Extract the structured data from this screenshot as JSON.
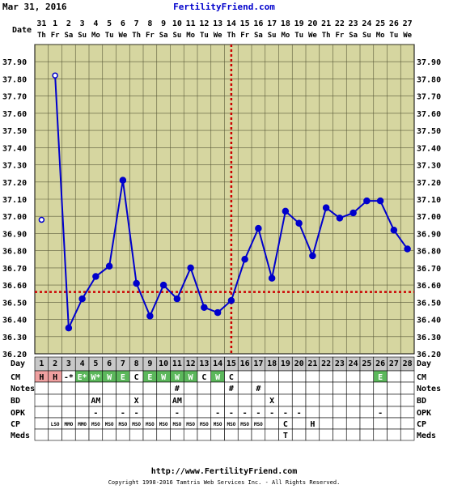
{
  "header": {
    "date": "Mar 31, 2016",
    "site": "FertilityFriend.com",
    "row_labels": {
      "date": "Date",
      "day": "Day",
      "cm": "CM",
      "notes": "Notes",
      "bd": "BD",
      "opk": "OPK",
      "cp": "CP",
      "meds": "Meds"
    }
  },
  "footer": {
    "url": "http://www.FertilityFriend.com",
    "copyright": "Copyright 1998-2016 Tamtris Web Services Inc. - All Rights Reserved."
  },
  "colors": {
    "chart_bg": "#d6d6a0",
    "grid": "#5a5a3a",
    "line": "#0000cc",
    "coverline": "#cc0000",
    "ovulation": "#cc0000",
    "day_row_bg": "#c8c8c8",
    "period_cell": "#f0a0a0",
    "egg_white_cell": "#5cb85c",
    "site_link": "#0000cc"
  },
  "chart_data": {
    "type": "line",
    "dates": [
      "31",
      "1",
      "2",
      "3",
      "4",
      "5",
      "6",
      "7",
      "8",
      "9",
      "10",
      "11",
      "12",
      "13",
      "14",
      "15",
      "16",
      "17",
      "18",
      "19",
      "20",
      "21",
      "22",
      "23",
      "24",
      "25",
      "26",
      "27"
    ],
    "weekdays": [
      "Th",
      "Fr",
      "Sa",
      "Su",
      "Mo",
      "Tu",
      "We",
      "Th",
      "Fr",
      "Sa",
      "Su",
      "Mo",
      "Tu",
      "We",
      "Th",
      "Fr",
      "Sa",
      "Su",
      "Mo",
      "Tu",
      "We",
      "Th",
      "Fr",
      "Sa",
      "Su",
      "Mo",
      "Tu",
      "We"
    ],
    "days": [
      "1",
      "2",
      "3",
      "4",
      "5",
      "6",
      "7",
      "8",
      "9",
      "10",
      "11",
      "12",
      "13",
      "14",
      "15",
      "16",
      "17",
      "18",
      "19",
      "20",
      "21",
      "22",
      "23",
      "24",
      "25",
      "26",
      "27",
      "28"
    ],
    "temperatures": [
      36.98,
      37.82,
      36.35,
      36.52,
      36.65,
      36.71,
      37.21,
      36.61,
      36.42,
      36.6,
      36.52,
      36.7,
      36.47,
      36.44,
      36.51,
      36.75,
      36.93,
      36.64,
      37.03,
      36.96,
      36.77,
      37.05,
      36.99,
      37.02,
      37.09,
      37.09,
      36.92,
      36.81
    ],
    "open_points": [
      1,
      2
    ],
    "ylim": [
      36.2,
      38.0
    ],
    "yticks": [
      "36.20",
      "36.30",
      "36.40",
      "36.50",
      "36.60",
      "36.70",
      "36.80",
      "36.90",
      "37.00",
      "37.10",
      "37.20",
      "37.30",
      "37.40",
      "37.50",
      "37.60",
      "37.70",
      "37.80",
      "37.90"
    ],
    "coverline": 36.56,
    "ovulation_day": 15,
    "grid": true,
    "cm": [
      "H",
      "H",
      "-*",
      "E*",
      "W*",
      "W",
      "E",
      "C",
      "E",
      "W",
      "W",
      "W",
      "C",
      "W",
      "C",
      "",
      "",
      "",
      "",
      "",
      "",
      "",
      "",
      "",
      "",
      "E",
      "",
      ""
    ],
    "notes": [
      "",
      "",
      "",
      "",
      "",
      "",
      "",
      "",
      "",
      "",
      "#",
      "",
      "",
      "",
      "#",
      "",
      "#",
      "",
      "",
      "",
      "",
      "",
      "",
      "",
      "",
      "",
      "",
      ""
    ],
    "bd": [
      "",
      "",
      "",
      "",
      "AM",
      "",
      "",
      "X",
      "",
      "",
      "AM",
      "",
      "",
      "",
      "",
      "",
      "",
      "X",
      "",
      "",
      "",
      "",
      "",
      "",
      "",
      "",
      "",
      ""
    ],
    "opk": [
      "",
      "",
      "",
      "",
      "-",
      "",
      "-",
      "-",
      "",
      "",
      "-",
      "",
      "",
      "-",
      "-",
      "-",
      "-",
      "-",
      "-",
      "-",
      "",
      "",
      "",
      "",
      "",
      "-",
      "",
      ""
    ],
    "cp": [
      "",
      "LSO",
      "MMO",
      "MMO",
      "MSO",
      "MSO",
      "MSO",
      "MSO",
      "MSO",
      "MSO",
      "MSO",
      "MSO",
      "MSO",
      "MSO",
      "MSO",
      "MSO",
      "MSO",
      "",
      "C",
      "",
      "H",
      "",
      "",
      "",
      "",
      "",
      "",
      ""
    ],
    "meds": [
      "",
      "",
      "",
      "",
      "",
      "",
      "",
      "",
      "",
      "",
      "",
      "",
      "",
      "",
      "",
      "",
      "",
      "",
      "T",
      "",
      "",
      "",
      "",
      "",
      "",
      "",
      "",
      ""
    ]
  }
}
